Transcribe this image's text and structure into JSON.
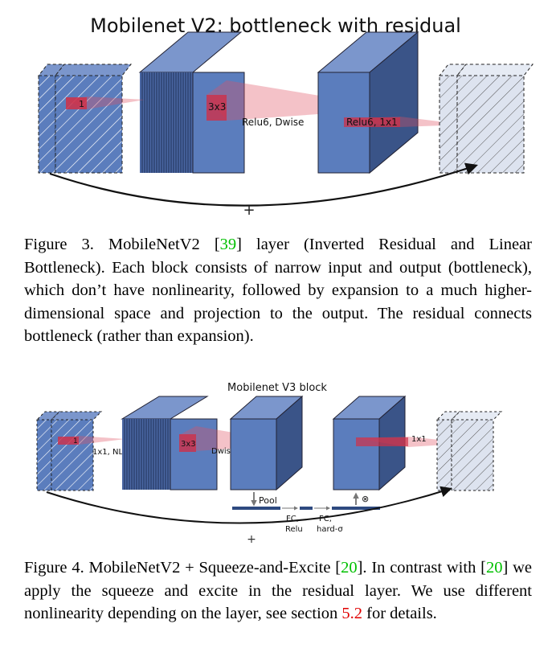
{
  "figure3": {
    "title": "Mobilenet V2: bottleneck with residual",
    "labels": {
      "expand": "1",
      "dwise_kernel": "3x3",
      "dwise": "Relu6, Dwise",
      "project": "Relu6, 1x1",
      "add": "+"
    },
    "caption": {
      "prefix": "Figure 3. MobileNetV2 [",
      "ref": "39",
      "text": "] layer (Inverted Residual and Linear Bottleneck). Each block consists of narrow input and output (bottleneck), which don’t have nonlinearity, followed by expansion to a much higher-dimensional space and projection to the output. The residual connects bottleneck (rather than expansion)."
    }
  },
  "figure4": {
    "title": "Mobilenet V3 block",
    "labels": {
      "expand": "1x1, NL",
      "expand_kernel": "1",
      "dwise_kernel": "3x3",
      "dwise": "Dwise, NL",
      "project": "1x1",
      "pool": "Pool",
      "fc1": "FC,",
      "fc1_act": "Relu",
      "fc2": "FC,",
      "fc2_act": "hard-σ",
      "mult": "⊗",
      "add": "+"
    },
    "caption": {
      "part1": "Figure 4. MobileNetV2 + Squeeze-and-Excite [",
      "ref1": "20",
      "part2": "]. In contrast with [",
      "ref2": "20",
      "part3": "] we apply the squeeze and excite in the residual layer. We use different nonlinearity depending on the layer, see section ",
      "ref3": "5.2",
      "part4": " for details."
    }
  },
  "colors": {
    "block_front": "#5b7dbd",
    "block_top": "#7b96cc",
    "block_side": "#3a5488",
    "output_block": "#dde3ef",
    "highlight": "#e05060",
    "ref_green": "#00c000",
    "ref_red": "#e00000"
  }
}
